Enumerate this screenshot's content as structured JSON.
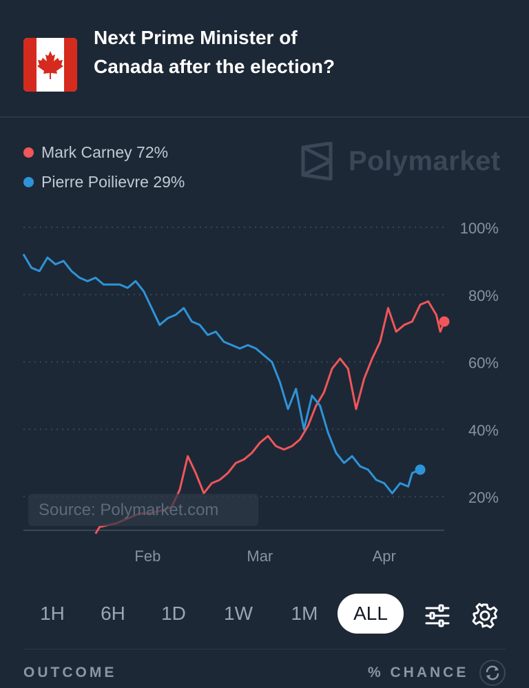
{
  "header": {
    "title": "Next Prime Minister of Canada after the election?"
  },
  "legend": [
    {
      "label": "Mark Carney 72%",
      "color": "#f0565a"
    },
    {
      "label": "Pierre Poilievre 29%",
      "color": "#2e94d8"
    }
  ],
  "brand": {
    "name": "Polymarket",
    "icon": "polymarket-logo-icon"
  },
  "source": "Source: Polymarket.com",
  "chart_data": {
    "type": "line",
    "y_tick_labels": [
      "100%",
      "80%",
      "60%",
      "40%",
      "20%"
    ],
    "y_ticks": [
      100,
      80,
      60,
      40,
      20
    ],
    "ylim": [
      10,
      100
    ],
    "x_tick_labels": [
      "Feb",
      "Mar",
      "Apr"
    ],
    "x_tick_dates": [
      "2025-02-01",
      "2025-03-01",
      "2025-04-01"
    ],
    "grid": true,
    "legend_position": "top-left",
    "series": [
      {
        "name": "Mark Carney",
        "color": "#f0565a",
        "points": [
          [
            "2025-01-19",
            9
          ],
          [
            "2025-01-20",
            11
          ],
          [
            "2025-01-22",
            11.5
          ],
          [
            "2025-01-24",
            12
          ],
          [
            "2025-01-26",
            13
          ],
          [
            "2025-01-28",
            14
          ],
          [
            "2025-01-30",
            15
          ],
          [
            "2025-02-01",
            15
          ],
          [
            "2025-02-03",
            15.5
          ],
          [
            "2025-02-05",
            16
          ],
          [
            "2025-02-07",
            17
          ],
          [
            "2025-02-09",
            22
          ],
          [
            "2025-02-11",
            32
          ],
          [
            "2025-02-13",
            27
          ],
          [
            "2025-02-15",
            21
          ],
          [
            "2025-02-17",
            24
          ],
          [
            "2025-02-19",
            25
          ],
          [
            "2025-02-21",
            27
          ],
          [
            "2025-02-23",
            30
          ],
          [
            "2025-02-25",
            31
          ],
          [
            "2025-02-27",
            33
          ],
          [
            "2025-03-01",
            36
          ],
          [
            "2025-03-03",
            38
          ],
          [
            "2025-03-05",
            35
          ],
          [
            "2025-03-07",
            34
          ],
          [
            "2025-03-09",
            35
          ],
          [
            "2025-03-11",
            37
          ],
          [
            "2025-03-13",
            41
          ],
          [
            "2025-03-15",
            47
          ],
          [
            "2025-03-17",
            51
          ],
          [
            "2025-03-19",
            58
          ],
          [
            "2025-03-21",
            61
          ],
          [
            "2025-03-23",
            58
          ],
          [
            "2025-03-25",
            46
          ],
          [
            "2025-03-27",
            55
          ],
          [
            "2025-03-29",
            61
          ],
          [
            "2025-03-31",
            66
          ],
          [
            "2025-04-02",
            76
          ],
          [
            "2025-04-04",
            69
          ],
          [
            "2025-04-06",
            71
          ],
          [
            "2025-04-08",
            72
          ],
          [
            "2025-04-10",
            77
          ],
          [
            "2025-04-12",
            78
          ],
          [
            "2025-04-14",
            74
          ],
          [
            "2025-04-15",
            69
          ],
          [
            "2025-04-16",
            72
          ]
        ]
      },
      {
        "name": "Pierre Poilievre",
        "color": "#2e94d8",
        "points": [
          [
            "2025-01-01",
            92
          ],
          [
            "2025-01-03",
            88
          ],
          [
            "2025-01-05",
            87
          ],
          [
            "2025-01-07",
            91
          ],
          [
            "2025-01-09",
            89
          ],
          [
            "2025-01-11",
            90
          ],
          [
            "2025-01-13",
            87
          ],
          [
            "2025-01-15",
            85
          ],
          [
            "2025-01-17",
            84
          ],
          [
            "2025-01-19",
            85
          ],
          [
            "2025-01-21",
            83
          ],
          [
            "2025-01-23",
            83
          ],
          [
            "2025-01-25",
            83
          ],
          [
            "2025-01-27",
            82
          ],
          [
            "2025-01-29",
            84
          ],
          [
            "2025-01-31",
            81
          ],
          [
            "2025-02-02",
            76
          ],
          [
            "2025-02-04",
            71
          ],
          [
            "2025-02-06",
            73
          ],
          [
            "2025-02-08",
            74
          ],
          [
            "2025-02-10",
            76
          ],
          [
            "2025-02-12",
            72
          ],
          [
            "2025-02-14",
            71
          ],
          [
            "2025-02-16",
            68
          ],
          [
            "2025-02-18",
            69
          ],
          [
            "2025-02-20",
            66
          ],
          [
            "2025-02-22",
            65
          ],
          [
            "2025-02-24",
            64
          ],
          [
            "2025-02-26",
            65
          ],
          [
            "2025-02-28",
            64
          ],
          [
            "2025-03-02",
            62
          ],
          [
            "2025-03-04",
            60
          ],
          [
            "2025-03-06",
            54
          ],
          [
            "2025-03-08",
            46
          ],
          [
            "2025-03-10",
            52
          ],
          [
            "2025-03-12",
            40
          ],
          [
            "2025-03-14",
            50
          ],
          [
            "2025-03-16",
            47
          ],
          [
            "2025-03-18",
            39
          ],
          [
            "2025-03-20",
            33
          ],
          [
            "2025-03-22",
            30
          ],
          [
            "2025-03-24",
            32
          ],
          [
            "2025-03-26",
            29
          ],
          [
            "2025-03-28",
            28
          ],
          [
            "2025-03-30",
            25
          ],
          [
            "2025-04-01",
            24
          ],
          [
            "2025-04-03",
            21
          ],
          [
            "2025-04-05",
            24
          ],
          [
            "2025-04-07",
            23
          ],
          [
            "2025-04-08",
            27
          ],
          [
            "2025-04-10",
            28
          ]
        ]
      }
    ]
  },
  "timeframes": [
    "1H",
    "6H",
    "1D",
    "1W",
    "1M",
    "ALL"
  ],
  "active_timeframe": "ALL",
  "controls": {
    "filter_icon": "sliders-icon",
    "settings_icon": "gear-icon",
    "refresh_icon": "refresh-icon"
  },
  "table": {
    "outcome_header": "OUTCOME",
    "chance_header": "% CHANCE"
  }
}
